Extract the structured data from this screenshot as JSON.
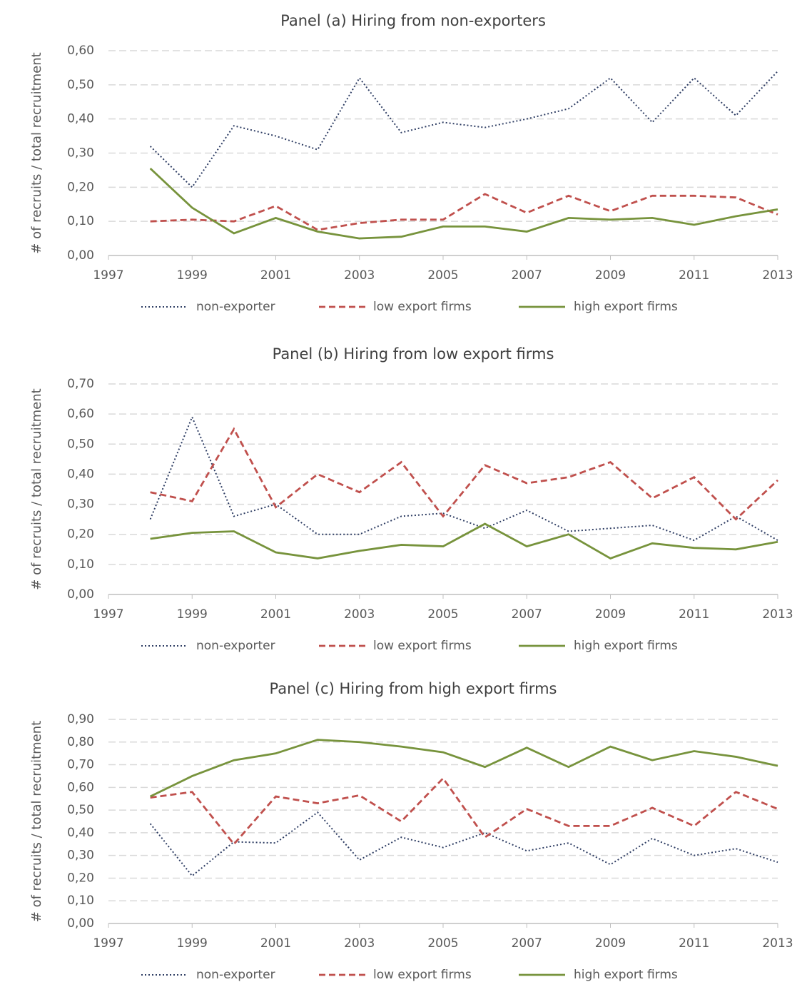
{
  "chart_data": [
    {
      "type": "line",
      "title": "Panel (a) Hiring from non-exporters",
      "y_label": "# of recruits / total recruitment",
      "x": [
        1998,
        1999,
        2000,
        2001,
        2002,
        2003,
        2004,
        2005,
        2006,
        2007,
        2008,
        2009,
        2010,
        2011,
        2012,
        2013
      ],
      "xlim": [
        1997,
        2013
      ],
      "xticks": [
        1997,
        1999,
        2001,
        2003,
        2005,
        2007,
        2009,
        2011,
        2013
      ],
      "ylim": [
        0,
        0.6
      ],
      "yticks": [
        {
          "value": 0,
          "label": "0,00"
        },
        {
          "value": 0.1,
          "label": "0,10"
        },
        {
          "value": 0.2,
          "label": "0,20"
        },
        {
          "value": 0.3,
          "label": "0,30"
        },
        {
          "value": 0.4,
          "label": "0,40"
        },
        {
          "value": 0.5,
          "label": "0,50"
        },
        {
          "value": 0.6,
          "label": "0,60"
        }
      ],
      "grid": true,
      "legend": "bottom",
      "series": [
        {
          "name": "non-exporter",
          "color": "#2f3e64",
          "line_style": "dotted",
          "values": [
            0.32,
            0.2,
            0.38,
            0.35,
            0.31,
            0.52,
            0.36,
            0.39,
            0.375,
            0.4,
            0.43,
            0.52,
            0.39,
            0.52,
            0.41,
            0.54
          ]
        },
        {
          "name": "low export firms",
          "color": "#c0504d",
          "line_style": "dashed",
          "values": [
            0.1,
            0.105,
            0.1,
            0.145,
            0.075,
            0.095,
            0.105,
            0.105,
            0.18,
            0.125,
            0.175,
            0.13,
            0.175,
            0.175,
            0.17,
            0.12
          ]
        },
        {
          "name": "high export firms",
          "color": "#77933c",
          "line_style": "solid",
          "values": [
            0.255,
            0.14,
            0.065,
            0.11,
            0.07,
            0.05,
            0.055,
            0.085,
            0.085,
            0.07,
            0.11,
            0.105,
            0.11,
            0.09,
            0.115,
            0.135
          ]
        }
      ]
    },
    {
      "type": "line",
      "title": "Panel (b) Hiring from low export firms",
      "y_label": "# of recruits / total recruitment",
      "x": [
        1998,
        1999,
        2000,
        2001,
        2002,
        2003,
        2004,
        2005,
        2006,
        2007,
        2008,
        2009,
        2010,
        2011,
        2012,
        2013
      ],
      "xlim": [
        1997,
        2013
      ],
      "xticks": [
        1997,
        1999,
        2001,
        2003,
        2005,
        2007,
        2009,
        2011,
        2013
      ],
      "ylim": [
        0,
        0.7
      ],
      "yticks": [
        {
          "value": 0,
          "label": "0,00"
        },
        {
          "value": 0.1,
          "label": "0,10"
        },
        {
          "value": 0.2,
          "label": "0,20"
        },
        {
          "value": 0.3,
          "label": "0,30"
        },
        {
          "value": 0.4,
          "label": "0,40"
        },
        {
          "value": 0.5,
          "label": "0,50"
        },
        {
          "value": 0.6,
          "label": "0,60"
        },
        {
          "value": 0.7,
          "label": "0,70"
        }
      ],
      "grid": true,
      "legend": "bottom",
      "series": [
        {
          "name": "non-exporter",
          "color": "#2f3e64",
          "line_style": "dotted",
          "values": [
            0.25,
            0.59,
            0.26,
            0.3,
            0.2,
            0.2,
            0.26,
            0.27,
            0.22,
            0.28,
            0.21,
            0.22,
            0.23,
            0.18,
            0.26,
            0.18
          ]
        },
        {
          "name": "low export firms",
          "color": "#c0504d",
          "line_style": "dashed",
          "values": [
            0.34,
            0.31,
            0.55,
            0.29,
            0.4,
            0.34,
            0.44,
            0.26,
            0.43,
            0.37,
            0.39,
            0.44,
            0.32,
            0.39,
            0.25,
            0.38
          ]
        },
        {
          "name": "high export firms",
          "color": "#77933c",
          "line_style": "solid",
          "values": [
            0.185,
            0.205,
            0.21,
            0.14,
            0.12,
            0.145,
            0.165,
            0.16,
            0.235,
            0.16,
            0.2,
            0.12,
            0.17,
            0.155,
            0.15,
            0.175
          ]
        }
      ]
    },
    {
      "type": "line",
      "title": "Panel (c) Hiring from high export firms",
      "y_label": "# of recruits / total recruitment",
      "x": [
        1998,
        1999,
        2000,
        2001,
        2002,
        2003,
        2004,
        2005,
        2006,
        2007,
        2008,
        2009,
        2010,
        2011,
        2012,
        2013
      ],
      "xlim": [
        1997,
        2013
      ],
      "xticks": [
        1997,
        1999,
        2001,
        2003,
        2005,
        2007,
        2009,
        2011,
        2013
      ],
      "ylim": [
        0,
        0.9
      ],
      "yticks": [
        {
          "value": 0,
          "label": "0,00"
        },
        {
          "value": 0.1,
          "label": "0,10"
        },
        {
          "value": 0.2,
          "label": "0,20"
        },
        {
          "value": 0.3,
          "label": "0,30"
        },
        {
          "value": 0.4,
          "label": "0,40"
        },
        {
          "value": 0.5,
          "label": "0,50"
        },
        {
          "value": 0.6,
          "label": "0,60"
        },
        {
          "value": 0.7,
          "label": "0,70"
        },
        {
          "value": 0.8,
          "label": "0,80"
        },
        {
          "value": 0.9,
          "label": "0,90"
        }
      ],
      "grid": true,
      "legend": "bottom",
      "series": [
        {
          "name": "non-exporter",
          "color": "#2f3e64",
          "line_style": "dotted",
          "values": [
            0.44,
            0.21,
            0.36,
            0.355,
            0.49,
            0.28,
            0.38,
            0.335,
            0.4,
            0.32,
            0.355,
            0.26,
            0.375,
            0.3,
            0.33,
            0.27
          ]
        },
        {
          "name": "low export firms",
          "color": "#c0504d",
          "line_style": "dashed",
          "values": [
            0.555,
            0.58,
            0.35,
            0.56,
            0.53,
            0.565,
            0.45,
            0.64,
            0.38,
            0.505,
            0.43,
            0.43,
            0.51,
            0.43,
            0.58,
            0.505
          ]
        },
        {
          "name": "high export firms",
          "color": "#77933c",
          "line_style": "solid",
          "values": [
            0.56,
            0.65,
            0.72,
            0.75,
            0.81,
            0.8,
            0.78,
            0.755,
            0.69,
            0.775,
            0.69,
            0.78,
            0.72,
            0.76,
            0.735,
            0.695
          ]
        }
      ]
    }
  ]
}
